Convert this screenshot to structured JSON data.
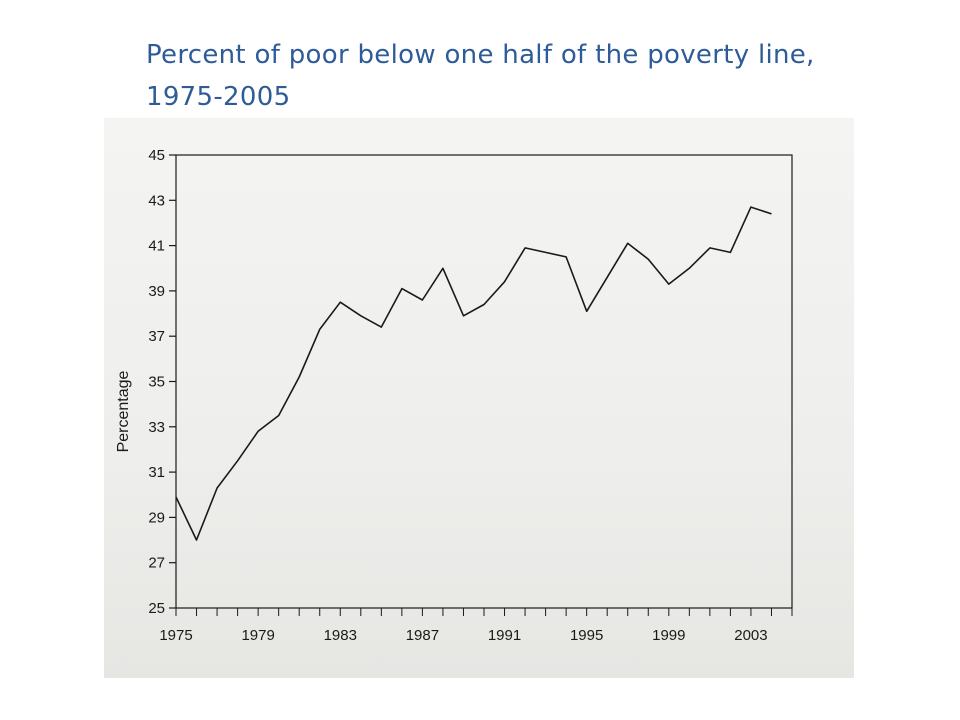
{
  "slide": {
    "title": "Percent of poor below one half of the poverty line, 1975-2005"
  },
  "chart_data": {
    "type": "line",
    "title": "",
    "xlabel": "",
    "ylabel": "Percentage",
    "xlim": [
      1975,
      2005
    ],
    "ylim": [
      25,
      45
    ],
    "y_ticks": [
      25,
      27,
      29,
      31,
      33,
      35,
      37,
      39,
      41,
      43,
      45
    ],
    "x_tick_labels": [
      "1975",
      "1979",
      "1983",
      "1987",
      "1991",
      "1995",
      "1999",
      "2003"
    ],
    "grid": false,
    "legend": "none",
    "line_color": "#1a1a1a",
    "series": [
      {
        "x": [
          1975,
          1976,
          1977,
          1978,
          1979,
          1980,
          1981,
          1982,
          1983,
          1984,
          1985,
          1986,
          1987,
          1988,
          1989,
          1990,
          1991,
          1992,
          1993,
          1994,
          1995,
          1996,
          1997,
          1998,
          1999,
          2000,
          2001,
          2002,
          2003,
          2004
        ],
        "values": [
          29.9,
          28.0,
          30.3,
          31.5,
          32.8,
          33.5,
          35.2,
          37.3,
          38.5,
          37.9,
          37.4,
          39.1,
          38.6,
          40.0,
          37.9,
          38.4,
          39.4,
          40.9,
          40.7,
          40.5,
          38.1,
          39.6,
          41.1,
          40.4,
          39.3,
          40.0,
          40.9,
          40.7,
          42.7,
          42.4
        ]
      }
    ]
  }
}
